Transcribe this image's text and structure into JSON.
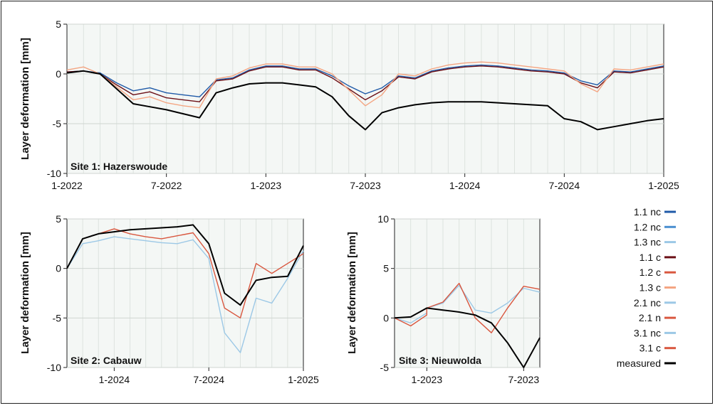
{
  "chart_data": [
    {
      "type": "line",
      "site_label": "Site 1: Hazerswoude",
      "ylabel": "Layer deformation [mm]",
      "ylim": [
        -10,
        5
      ],
      "yticks": [
        5,
        0,
        -5,
        -10
      ],
      "xticks": [
        "1-2022",
        "7-2022",
        "1-2023",
        "7-2023",
        "1-2024",
        "7-2024",
        "1-2025"
      ],
      "x_domain": [
        "2022-01",
        "2025-01"
      ],
      "grid": true,
      "series": [
        {
          "name": "measured",
          "x": [
            "2022-01",
            "2022-02",
            "2022-03",
            "2022-04",
            "2022-05",
            "2022-06",
            "2022-07",
            "2022-08",
            "2022-09",
            "2022-10",
            "2022-11",
            "2022-12",
            "2023-01",
            "2023-02",
            "2023-03",
            "2023-04",
            "2023-05",
            "2023-06",
            "2023-07",
            "2023-08",
            "2023-09",
            "2023-10",
            "2023-11",
            "2023-12",
            "2024-01",
            "2024-02",
            "2024-03",
            "2024-04",
            "2024-05",
            "2024-06",
            "2024-07",
            "2024-08",
            "2024-09",
            "2024-10",
            "2024-11",
            "2024-12",
            "2025-01"
          ],
          "values": [
            0.1,
            0.3,
            0.0,
            -1.5,
            -3.0,
            -3.3,
            -3.6,
            -4.0,
            -4.4,
            -1.9,
            -1.4,
            -1.0,
            -0.9,
            -0.9,
            -1.1,
            -1.3,
            -2.3,
            -4.2,
            -5.6,
            -3.9,
            -3.4,
            -3.1,
            -2.9,
            -2.8,
            -2.8,
            -2.8,
            -2.9,
            -3.0,
            -3.1,
            -3.2,
            -4.5,
            -4.8,
            -5.6,
            -5.3,
            -5.0,
            -4.7,
            -4.5
          ]
        },
        {
          "name": "1.1 nc",
          "x": [
            "2022-01",
            "2022-02",
            "2022-03",
            "2022-04",
            "2022-05",
            "2022-06",
            "2022-07",
            "2022-08",
            "2022-09",
            "2022-10",
            "2022-11",
            "2022-12",
            "2023-01",
            "2023-02",
            "2023-03",
            "2023-04",
            "2023-05",
            "2023-06",
            "2023-07",
            "2023-08",
            "2023-09",
            "2023-10",
            "2023-11",
            "2023-12",
            "2024-01",
            "2024-02",
            "2024-03",
            "2024-04",
            "2024-05",
            "2024-06",
            "2024-07",
            "2024-08",
            "2024-09",
            "2024-10",
            "2024-11",
            "2024-12",
            "2025-01"
          ],
          "values": [
            0.2,
            0.3,
            0.1,
            -0.9,
            -1.7,
            -1.4,
            -1.9,
            -2.1,
            -2.3,
            -0.6,
            -0.4,
            0.4,
            0.8,
            0.8,
            0.5,
            0.5,
            -0.2,
            -1.2,
            -2.0,
            -1.4,
            -0.2,
            -0.4,
            0.3,
            0.6,
            0.8,
            0.9,
            0.8,
            0.6,
            0.4,
            0.3,
            0.1,
            -0.7,
            -1.1,
            0.3,
            0.2,
            0.5,
            0.8
          ]
        },
        {
          "name": "1.1 c",
          "x": [
            "2022-01",
            "2022-02",
            "2022-03",
            "2022-04",
            "2022-05",
            "2022-06",
            "2022-07",
            "2022-08",
            "2022-09",
            "2022-10",
            "2022-11",
            "2022-12",
            "2023-01",
            "2023-02",
            "2023-03",
            "2023-04",
            "2023-05",
            "2023-06",
            "2023-07",
            "2023-08",
            "2023-09",
            "2023-10",
            "2023-11",
            "2023-12",
            "2024-01",
            "2024-02",
            "2024-03",
            "2024-04",
            "2024-05",
            "2024-06",
            "2024-07",
            "2024-08",
            "2024-09",
            "2024-10",
            "2024-11",
            "2024-12",
            "2025-01"
          ],
          "values": [
            0.2,
            0.3,
            0.0,
            -1.1,
            -2.1,
            -1.8,
            -2.4,
            -2.6,
            -2.8,
            -0.7,
            -0.5,
            0.3,
            0.7,
            0.7,
            0.4,
            0.4,
            -0.4,
            -1.5,
            -2.6,
            -1.7,
            -0.3,
            -0.5,
            0.2,
            0.5,
            0.7,
            0.8,
            0.7,
            0.5,
            0.3,
            0.2,
            0.0,
            -0.9,
            -1.4,
            0.2,
            0.1,
            0.4,
            0.7
          ]
        },
        {
          "name": "1.3 c",
          "x": [
            "2022-01",
            "2022-02",
            "2022-03",
            "2022-04",
            "2022-05",
            "2022-06",
            "2022-07",
            "2022-08",
            "2022-09",
            "2022-10",
            "2022-11",
            "2022-12",
            "2023-01",
            "2023-02",
            "2023-03",
            "2023-04",
            "2023-05",
            "2023-06",
            "2023-07",
            "2023-08",
            "2023-09",
            "2023-10",
            "2023-11",
            "2023-12",
            "2024-01",
            "2024-02",
            "2024-03",
            "2024-04",
            "2024-05",
            "2024-06",
            "2024-07",
            "2024-08",
            "2024-09",
            "2024-10",
            "2024-11",
            "2024-12",
            "2025-01"
          ],
          "values": [
            0.4,
            0.7,
            0.0,
            -1.3,
            -2.6,
            -2.3,
            -2.9,
            -3.2,
            -3.4,
            -0.5,
            -0.2,
            0.6,
            1.0,
            1.0,
            0.7,
            0.7,
            0.0,
            -1.6,
            -3.2,
            -2.1,
            0.0,
            -0.2,
            0.5,
            0.9,
            1.1,
            1.2,
            1.1,
            0.9,
            0.7,
            0.5,
            0.3,
            -1.0,
            -1.8,
            0.5,
            0.4,
            0.7,
            1.0
          ]
        }
      ]
    },
    {
      "type": "line",
      "site_label": "Site 2: Cabauw",
      "ylabel": "Layer deformation [mm]",
      "ylim": [
        -10,
        5
      ],
      "yticks": [
        5,
        0,
        -5,
        -10
      ],
      "xticks": [
        "1-2024",
        "7-2024",
        "1-2025"
      ],
      "x_domain": [
        "2023-10",
        "2025-01"
      ],
      "grid": true,
      "series": [
        {
          "name": "measured",
          "x": [
            "2023-10",
            "2023-11",
            "2023-12",
            "2024-01",
            "2024-02",
            "2024-03",
            "2024-04",
            "2024-05",
            "2024-06",
            "2024-07",
            "2024-08",
            "2024-09",
            "2024-10",
            "2024-11",
            "2024-12",
            "2025-01"
          ],
          "values": [
            0.0,
            3.0,
            3.5,
            3.7,
            3.9,
            4.0,
            4.1,
            4.2,
            4.4,
            2.5,
            -2.5,
            -3.7,
            -1.2,
            -0.9,
            -0.8,
            2.3
          ]
        },
        {
          "name": "2.1 nc",
          "x": [
            "2023-10",
            "2023-11",
            "2023-12",
            "2024-01",
            "2024-02",
            "2024-03",
            "2024-04",
            "2024-05",
            "2024-06",
            "2024-07",
            "2024-08",
            "2024-09",
            "2024-10",
            "2024-11",
            "2024-12",
            "2025-01"
          ],
          "values": [
            0.0,
            2.5,
            2.8,
            3.2,
            3.0,
            2.8,
            2.6,
            2.5,
            2.9,
            1.0,
            -6.5,
            -8.5,
            -3.0,
            -3.5,
            -1.0,
            1.8
          ]
        },
        {
          "name": "2.1 n",
          "x": [
            "2023-10",
            "2023-11",
            "2023-12",
            "2024-01",
            "2024-02",
            "2024-03",
            "2024-04",
            "2024-05",
            "2024-06",
            "2024-07",
            "2024-08",
            "2024-09",
            "2024-10",
            "2024-11",
            "2024-12",
            "2025-01"
          ],
          "values": [
            0.0,
            3.0,
            3.5,
            4.0,
            3.5,
            3.2,
            3.0,
            3.3,
            3.6,
            1.5,
            -4.0,
            -5.0,
            0.5,
            -0.5,
            0.5,
            1.5
          ]
        }
      ]
    },
    {
      "type": "line",
      "site_label": "Site 3: Nieuwolda",
      "ylabel": "Layer deformation [mm]",
      "ylim": [
        -5,
        10
      ],
      "yticks": [
        10,
        5,
        0,
        -5
      ],
      "xticks": [
        "1-2023",
        "7-2023"
      ],
      "x_domain": [
        "2022-11",
        "2023-08"
      ],
      "grid": true,
      "series": [
        {
          "name": "measured",
          "x": [
            "2022-11",
            "2022-12",
            "2023-01",
            "2023-02",
            "2023-03",
            "2023-04",
            "2023-05",
            "2023-06",
            "2023-07",
            "2023-08"
          ],
          "values": [
            0.0,
            0.1,
            1.0,
            0.8,
            0.6,
            0.3,
            -0.5,
            -2.5,
            -5.0,
            -2.0
          ]
        },
        {
          "name": "3.1 nc",
          "x": [
            "2022-11",
            "2022-12",
            "2022-13",
            "2023-01",
            "2023-02",
            "2023-03",
            "2023-04",
            "2023-05",
            "2023-06",
            "2023-07",
            "2023-08"
          ],
          "values": [
            0.0,
            -0.5,
            0.5,
            1.0,
            1.5,
            3.3,
            0.8,
            0.5,
            1.5,
            3.0,
            2.6
          ]
        },
        {
          "name": "3.1 c",
          "x": [
            "2022-11",
            "2022-12",
            "2022-13",
            "2023-01",
            "2023-02",
            "2023-03",
            "2023-04",
            "2023-05",
            "2023-06",
            "2023-07",
            "2023-08"
          ],
          "values": [
            0.0,
            -0.8,
            0.3,
            1.0,
            1.6,
            3.5,
            0.0,
            -1.5,
            1.0,
            3.2,
            2.9
          ]
        }
      ]
    }
  ],
  "legend": [
    {
      "name": "1.1 nc",
      "color": "#1f5aa8"
    },
    {
      "name": "1.2 nc",
      "color": "#4a8fd0"
    },
    {
      "name": "1.3 nc",
      "color": "#9cc8e6"
    },
    {
      "name": "1.1 c",
      "color": "#6b0f16"
    },
    {
      "name": "1.2 c",
      "color": "#d9573f"
    },
    {
      "name": "1.3 c",
      "color": "#f4a582"
    },
    {
      "name": "2.1 nc",
      "color": "#9cc8e6"
    },
    {
      "name": "2.1 n",
      "color": "#d9573f"
    },
    {
      "name": "3.1 nc",
      "color": "#9cc8e6"
    },
    {
      "name": "3.1 c",
      "color": "#d9573f"
    },
    {
      "name": "measured",
      "color": "#000000"
    }
  ]
}
